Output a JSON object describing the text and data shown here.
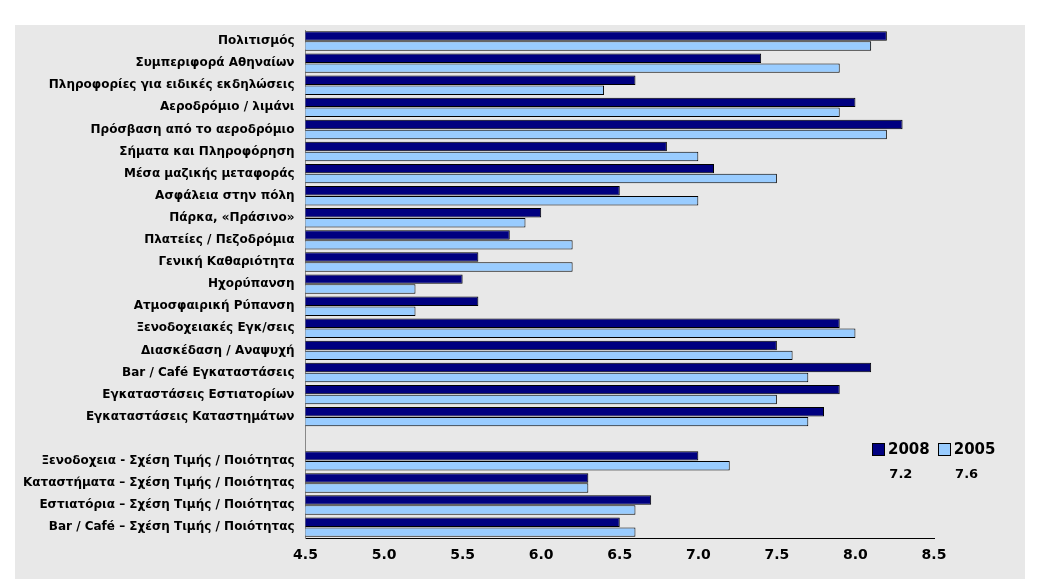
{
  "chart_data": {
    "type": "bar",
    "orientation": "horizontal",
    "categories": [
      "Πολιτισμός",
      "Συμπεριφορά Αθηναίων",
      "Πληροφορίες για ειδικές εκδηλώσεις",
      "Αεροδρόμιο / λιμάνι",
      "Πρόσβαση από το αεροδρόμιο",
      "Σήματα και Πληροφόρηση",
      "Μέσα μαζικής μεταφοράς",
      "Ασφάλεια στην πόλη",
      "Πάρκα, «Πράσινο»",
      "Πλατείες / Πεζοδρόμια",
      "Γενική Καθαριότητα",
      "Ηχορύπανση",
      "Ατμοσφαιρική Ρύπανση",
      "Ξενοδοχειακές Εγκ/σεις",
      "Διασκέδαση / Αναψυχή",
      "Bar / Café Εγκαταστάσεις",
      "Εγκαταστάσεις Εστιατορίων",
      "Εγκαταστάσεις Καταστημάτων",
      null,
      "Ξενοδοχεια - Σχέση Τιμής / Ποιότητας",
      "Καταστήματα – Σχέση Τιμής / Ποιότητας",
      "Εστιατόρια – Σχέση Τιμής / Ποιότητας",
      "Bar / Café – Σχέση Τιμής / Ποιότητας"
    ],
    "series": [
      {
        "name": "2008",
        "color": "#000080",
        "values": [
          8.2,
          7.4,
          6.6,
          8.0,
          8.3,
          6.8,
          7.1,
          6.5,
          6.0,
          5.8,
          5.6,
          5.5,
          5.6,
          7.9,
          7.5,
          8.1,
          7.9,
          7.8,
          null,
          7.0,
          6.3,
          6.7,
          6.5
        ]
      },
      {
        "name": "2005",
        "color": "#99ccff",
        "values": [
          8.1,
          7.9,
          6.4,
          7.9,
          8.2,
          7.0,
          7.5,
          7.0,
          5.9,
          6.2,
          6.2,
          5.2,
          5.2,
          8.0,
          7.6,
          7.7,
          7.5,
          7.7,
          null,
          7.2,
          6.3,
          6.6,
          6.6
        ]
      }
    ],
    "xlim": [
      4.5,
      8.5
    ],
    "xticks": [
      4.5,
      {
        "value": 5,
        "label": "5.0"
      },
      5.5,
      {
        "value": 6,
        "label": "6.0"
      },
      6.5,
      {
        "value": 7,
        "label": "7.0"
      },
      7.5,
      {
        "value": 8,
        "label": "8.0"
      },
      8.5
    ],
    "legend": "bottom right",
    "grid": false,
    "annotations": [
      "7.2",
      "7.6"
    ]
  }
}
